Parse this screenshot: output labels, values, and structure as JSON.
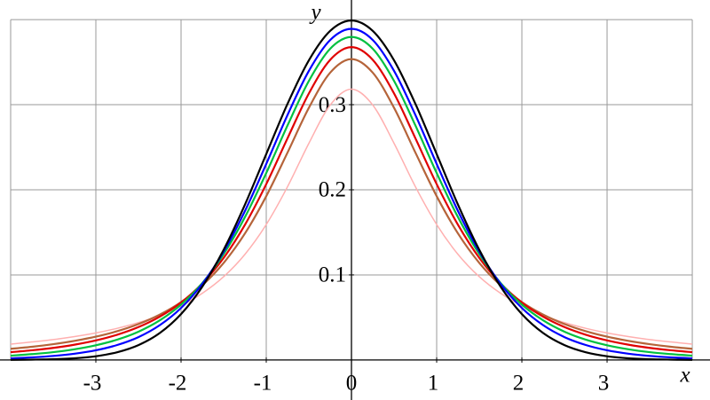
{
  "chart_data": {
    "type": "line",
    "x": [
      -4,
      -3.75,
      -3.5,
      -3.25,
      -3,
      -2.75,
      -2.5,
      -2.25,
      -2,
      -1.75,
      -1.5,
      -1.25,
      -1,
      -0.75,
      -0.5,
      -0.25,
      0,
      0.25,
      0.5,
      0.75,
      1,
      1.25,
      1.5,
      1.75,
      2,
      2.25,
      2.5,
      2.75,
      3,
      3.25,
      3.5,
      3.75,
      4
    ],
    "series": [
      {
        "color": "#ffb0b0",
        "values": [
          0.0187,
          0.0212,
          0.024,
          0.0275,
          0.0318,
          0.0372,
          0.0439,
          0.0525,
          0.0637,
          0.0784,
          0.0979,
          0.1242,
          0.1592,
          0.2037,
          0.2546,
          0.2996,
          0.3183,
          0.2996,
          0.2546,
          0.2037,
          0.1592,
          0.1242,
          0.0979,
          0.0784,
          0.0637,
          0.0525,
          0.0439,
          0.0372,
          0.0318,
          0.0275,
          0.024,
          0.0212,
          0.0187
        ]
      },
      {
        "color": "#b5643a",
        "values": [
          0.0131,
          0.0155,
          0.0186,
          0.0225,
          0.0274,
          0.0338,
          0.0422,
          0.0533,
          0.068,
          0.0878,
          0.1141,
          0.1487,
          0.1925,
          0.2438,
          0.2963,
          0.3376,
          0.3536,
          0.3376,
          0.2963,
          0.2438,
          0.1925,
          0.1487,
          0.1141,
          0.0878,
          0.068,
          0.0533,
          0.0422,
          0.0338,
          0.0274,
          0.0225,
          0.0186,
          0.0155,
          0.0131
        ]
      },
      {
        "color": "#e00000",
        "values": [
          0.0092,
          0.0114,
          0.0142,
          0.018,
          0.023,
          0.0297,
          0.0387,
          0.0509,
          0.0675,
          0.09,
          0.12,
          0.1589,
          0.2067,
          0.2606,
          0.3132,
          0.3527,
          0.3676,
          0.3527,
          0.3132,
          0.2606,
          0.2067,
          0.1589,
          0.12,
          0.09,
          0.0675,
          0.0509,
          0.0387,
          0.0297,
          0.023,
          0.018,
          0.0142,
          0.0114,
          0.0092
        ]
      },
      {
        "color": "#00c040",
        "values": [
          0.0051,
          0.0069,
          0.0092,
          0.0126,
          0.0173,
          0.0239,
          0.0333,
          0.0466,
          0.0651,
          0.0905,
          0.1245,
          0.1679,
          0.2197,
          0.2757,
          0.3279,
          0.3657,
          0.3796,
          0.3657,
          0.3279,
          0.2757,
          0.2197,
          0.1679,
          0.1245,
          0.0905,
          0.0651,
          0.0466,
          0.0333,
          0.0239,
          0.0173,
          0.0126,
          0.0092,
          0.0069,
          0.0051
        ]
      },
      {
        "color": "#0000ff",
        "values": [
          0.002,
          0.0031,
          0.0048,
          0.0074,
          0.0114,
          0.0176,
          0.0269,
          0.0409,
          0.0611,
          0.0895,
          0.1274,
          0.1751,
          0.2304,
          0.288,
          0.3397,
          0.376,
          0.3891,
          0.376,
          0.3397,
          0.288,
          0.2304,
          0.1751,
          0.1274,
          0.0895,
          0.0611,
          0.0409,
          0.0269,
          0.0176,
          0.0114,
          0.0074,
          0.0048,
          0.0031,
          0.002
        ]
      },
      {
        "color": "#000000",
        "values": [
          0.0001,
          0.0004,
          0.0009,
          0.002,
          0.0044,
          0.0091,
          0.0175,
          0.0317,
          0.054,
          0.0863,
          0.1295,
          0.1826,
          0.242,
          0.3011,
          0.3521,
          0.3867,
          0.3989,
          0.3867,
          0.3521,
          0.3011,
          0.242,
          0.1826,
          0.1295,
          0.0863,
          0.054,
          0.0317,
          0.0175,
          0.0091,
          0.0044,
          0.002,
          0.0009,
          0.0004,
          0.0001
        ]
      }
    ],
    "x_label": "x",
    "y_label": "y",
    "xlim": [
      -4.125,
      4.208
    ],
    "ylim": [
      -0.047,
      0.423
    ],
    "xticks": [
      -3,
      -2,
      -1,
      0,
      1,
      2,
      3
    ],
    "yticks": [
      0.1,
      0.2,
      0.3
    ],
    "xgrid": [
      -4,
      -3,
      -2,
      -1,
      1,
      2,
      3,
      4
    ],
    "ygrid": [
      0.1,
      0.2,
      0.3,
      0.4
    ],
    "grid": true
  }
}
